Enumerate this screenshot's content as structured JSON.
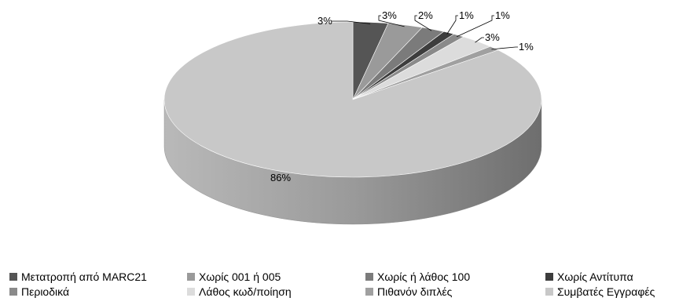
{
  "chart_data": {
    "type": "pie",
    "style": "3d",
    "slices": [
      {
        "label": "Μετατροπή από MARC21",
        "value": 3,
        "display": "3%",
        "color": "#555555",
        "side_color": "#3a3a3a"
      },
      {
        "label": "Χωρίς 001 ή 005",
        "value": 3,
        "display": "3%",
        "color": "#9a9a9a",
        "side_color": "#707070"
      },
      {
        "label": "Χωρίς ή λάθος 100",
        "value": 2,
        "display": "2%",
        "color": "#7b7b7b",
        "side_color": "#585858"
      },
      {
        "label": "Χωρίς Αντίτυπα",
        "value": 1,
        "display": "1%",
        "color": "#3d3d3d",
        "side_color": "#2a2a2a"
      },
      {
        "label": "Περιοδικά",
        "value": 1,
        "display": "1%",
        "color": "#8a8a8a",
        "side_color": "#606060"
      },
      {
        "label": "Λάθος κωδ/ποίηση",
        "value": 3,
        "display": "3%",
        "color": "#dcdcdc",
        "side_color": "#a8a8a8"
      },
      {
        "label": "Πιθανόν διπλές",
        "value": 1,
        "display": "1%",
        "color": "#a0a0a0",
        "side_color": "#767676"
      },
      {
        "label": "Συμβατές Εγγραφές",
        "value": 86,
        "display": "86%",
        "color": "#c8c8c8",
        "side_color": "#8e8e8e"
      }
    ],
    "legend_position": "bottom"
  }
}
